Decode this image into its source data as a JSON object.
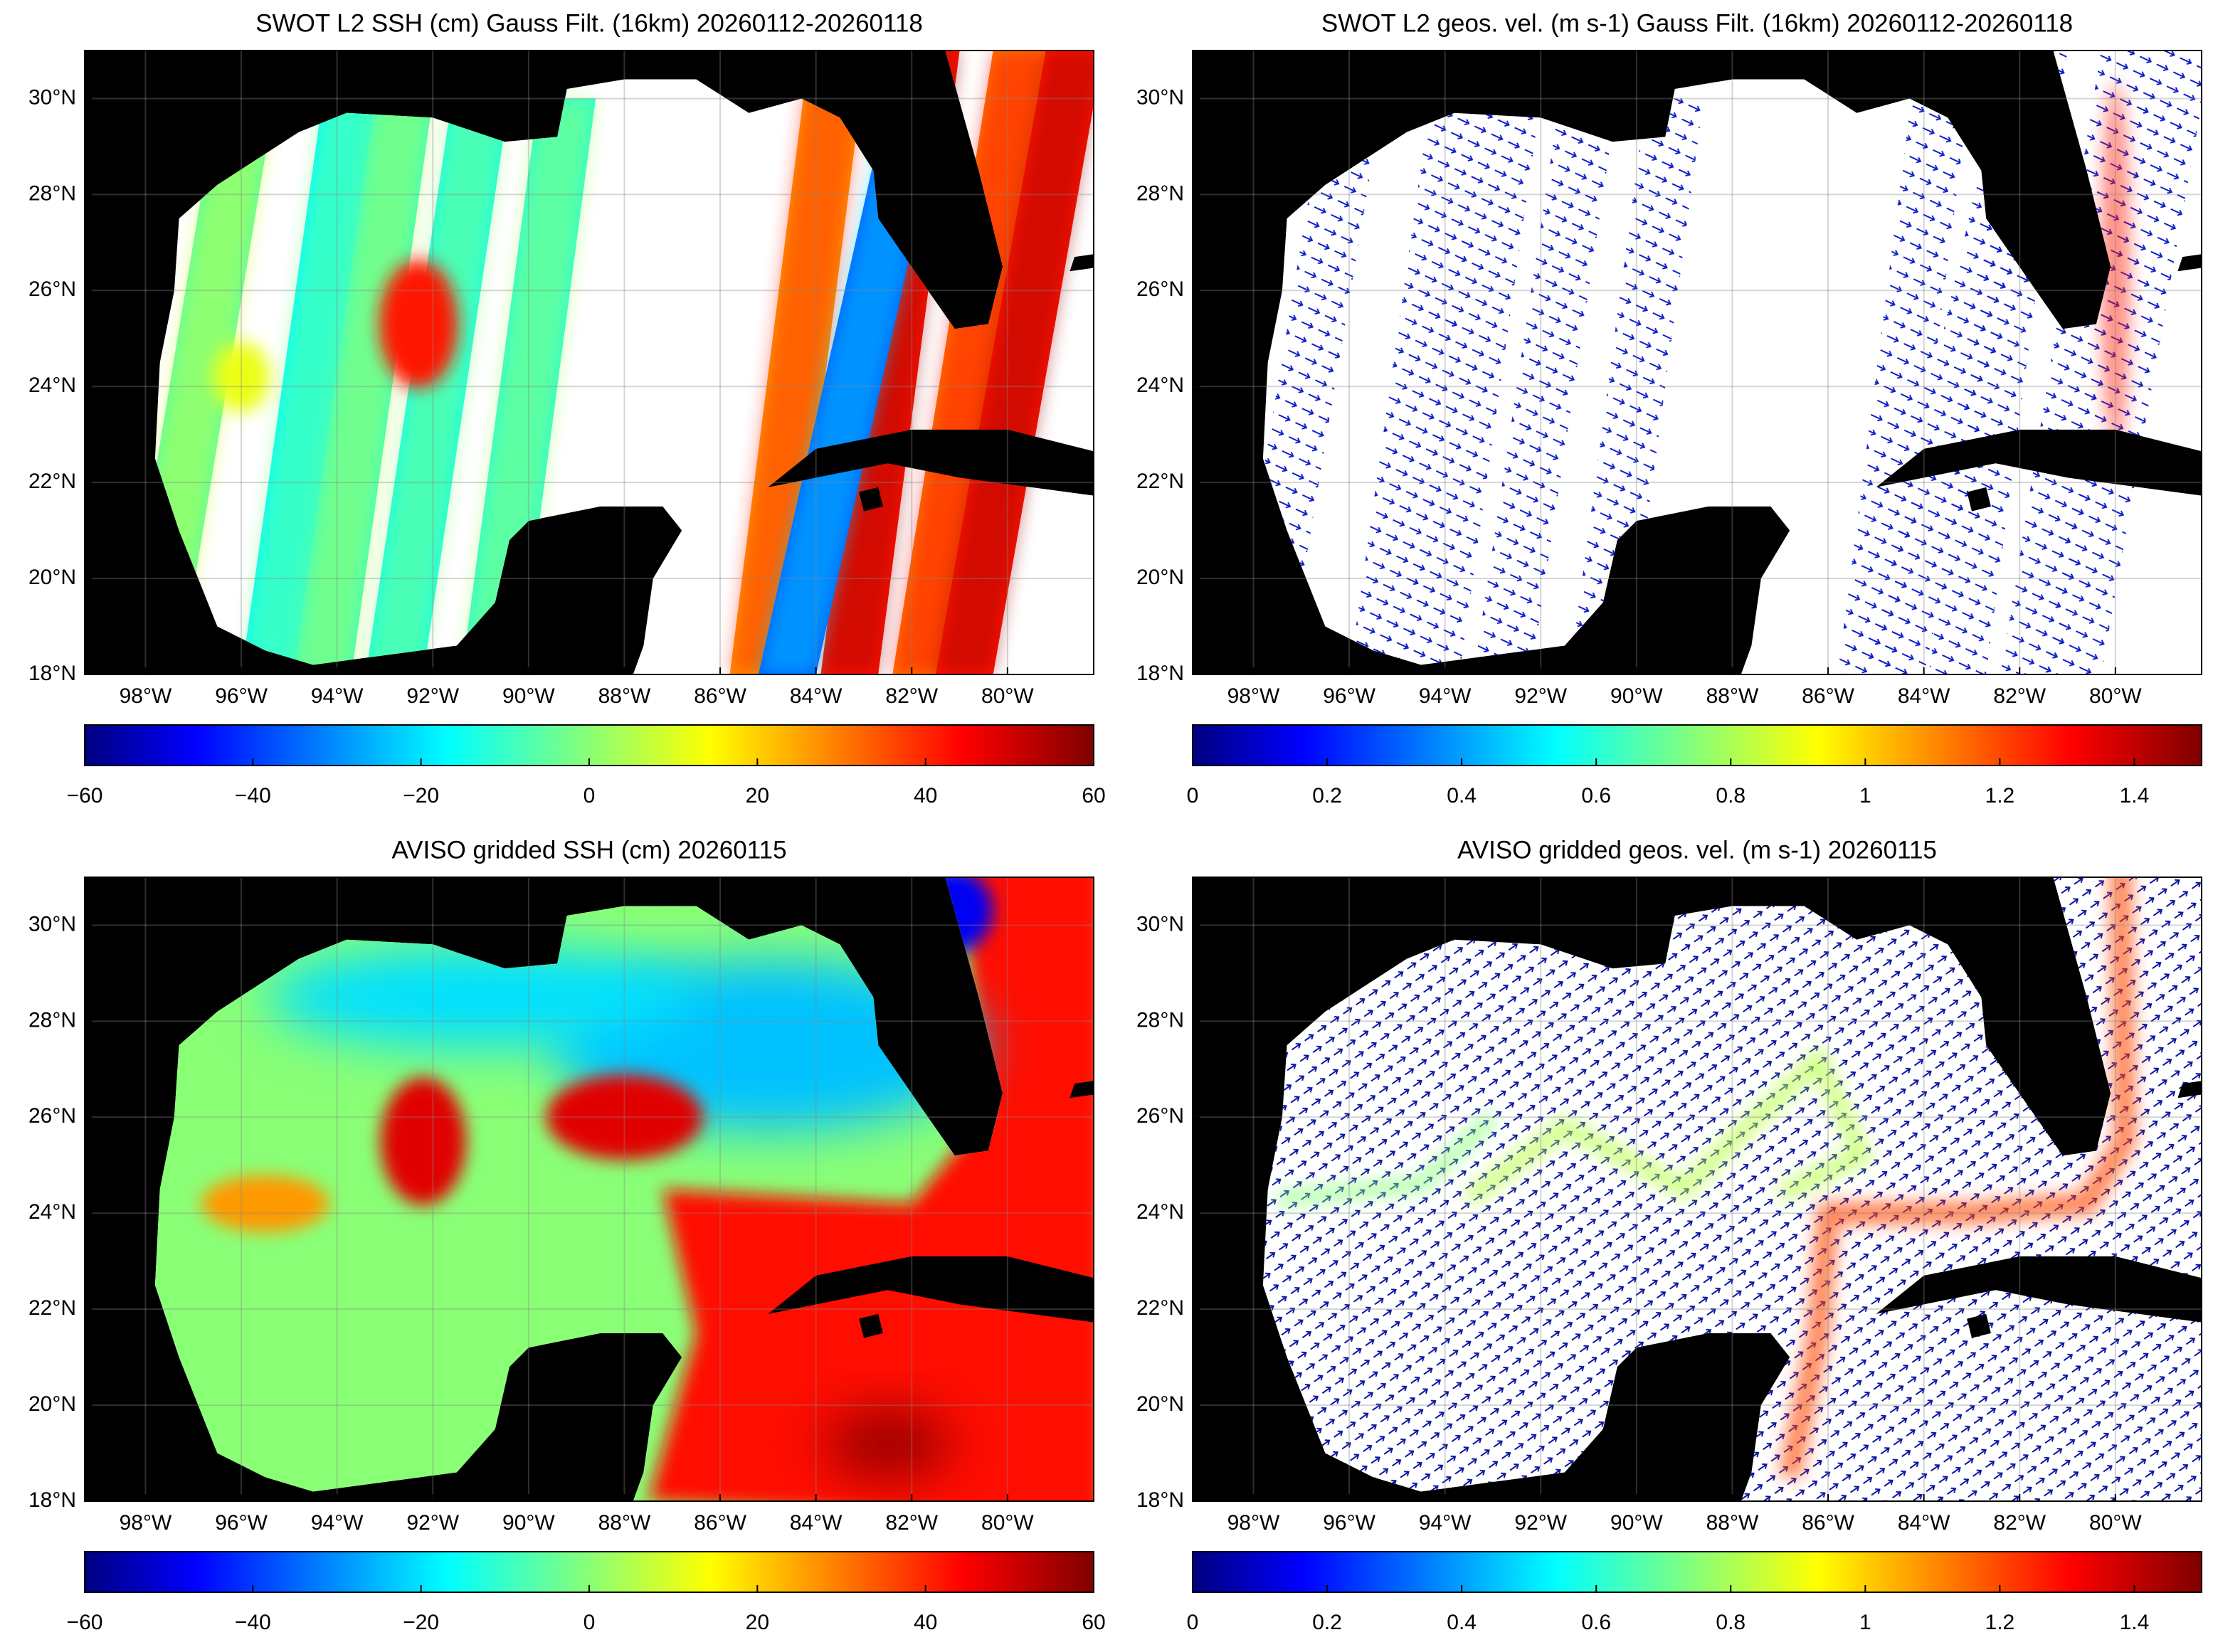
{
  "chart_data": [
    {
      "type": "map",
      "title": "SWOT L2 SSH (cm) Gauss Filt. (16km) 20260112-20260118",
      "style": "swath-ssh",
      "xlim": [
        -99.27,
        -78.2
      ],
      "ylim": [
        18,
        31.0
      ],
      "xticks": [
        {
          "value": -98,
          "label": "98°W"
        },
        {
          "value": -96,
          "label": "96°W"
        },
        {
          "value": -94,
          "label": "94°W"
        },
        {
          "value": -92,
          "label": "92°W"
        },
        {
          "value": -90,
          "label": "90°W"
        },
        {
          "value": -88,
          "label": "88°W"
        },
        {
          "value": -86,
          "label": "86°W"
        },
        {
          "value": -84,
          "label": "84°W"
        },
        {
          "value": -82,
          "label": "82°W"
        },
        {
          "value": -80,
          "label": "80°W"
        }
      ],
      "yticks": [
        {
          "value": 18,
          "label": "18°N"
        },
        {
          "value": 20,
          "label": "20°N"
        },
        {
          "value": 22,
          "label": "22°N"
        },
        {
          "value": 24,
          "label": "24°N"
        },
        {
          "value": 26,
          "label": "26°N"
        },
        {
          "value": 28,
          "label": "28°N"
        },
        {
          "value": 30,
          "label": "30°N"
        }
      ],
      "grid": true,
      "colormap": "jet",
      "clim": [
        -60,
        60
      ],
      "cticks": [
        {
          "value": -60,
          "label": "−60"
        },
        {
          "value": -40,
          "label": "−40"
        },
        {
          "value": -20,
          "label": "−20"
        },
        0,
        20,
        40,
        60
      ]
    },
    {
      "type": "map",
      "title": "SWOT L2 geos. vel. (m s-1) Gauss Filt. (16km) 20260112-20260118",
      "style": "swath-vel",
      "xlim": [
        -99.27,
        -78.2
      ],
      "ylim": [
        18,
        31.0
      ],
      "xticks": [
        {
          "value": -98,
          "label": "98°W"
        },
        {
          "value": -96,
          "label": "96°W"
        },
        {
          "value": -94,
          "label": "94°W"
        },
        {
          "value": -92,
          "label": "92°W"
        },
        {
          "value": -90,
          "label": "90°W"
        },
        {
          "value": -88,
          "label": "88°W"
        },
        {
          "value": -86,
          "label": "86°W"
        },
        {
          "value": -84,
          "label": "84°W"
        },
        {
          "value": -82,
          "label": "82°W"
        },
        {
          "value": -80,
          "label": "80°W"
        }
      ],
      "yticks": [
        {
          "value": 18,
          "label": "18°N"
        },
        {
          "value": 20,
          "label": "20°N"
        },
        {
          "value": 22,
          "label": "22°N"
        },
        {
          "value": 24,
          "label": "24°N"
        },
        {
          "value": 26,
          "label": "26°N"
        },
        {
          "value": 28,
          "label": "28°N"
        },
        {
          "value": 30,
          "label": "30°N"
        }
      ],
      "grid": true,
      "colormap": "jet",
      "clim": [
        0,
        1.5
      ],
      "cticks": [
        0,
        0.2,
        0.4,
        0.6,
        0.8,
        1,
        1.2,
        1.4
      ]
    },
    {
      "type": "map",
      "title": "AVISO gridded SSH (cm) 20260115",
      "style": "grid-ssh",
      "xlim": [
        -99.27,
        -78.2
      ],
      "ylim": [
        18,
        31.0
      ],
      "xticks": [
        {
          "value": -98,
          "label": "98°W"
        },
        {
          "value": -96,
          "label": "96°W"
        },
        {
          "value": -94,
          "label": "94°W"
        },
        {
          "value": -92,
          "label": "92°W"
        },
        {
          "value": -90,
          "label": "90°W"
        },
        {
          "value": -88,
          "label": "88°W"
        },
        {
          "value": -86,
          "label": "86°W"
        },
        {
          "value": -84,
          "label": "84°W"
        },
        {
          "value": -82,
          "label": "82°W"
        },
        {
          "value": -80,
          "label": "80°W"
        }
      ],
      "yticks": [
        {
          "value": 18,
          "label": "18°N"
        },
        {
          "value": 20,
          "label": "20°N"
        },
        {
          "value": 22,
          "label": "22°N"
        },
        {
          "value": 24,
          "label": "24°N"
        },
        {
          "value": 26,
          "label": "26°N"
        },
        {
          "value": 28,
          "label": "28°N"
        },
        {
          "value": 30,
          "label": "30°N"
        }
      ],
      "grid": true,
      "colormap": "jet",
      "clim": [
        -60,
        60
      ],
      "cticks": [
        {
          "value": -60,
          "label": "−60"
        },
        {
          "value": -40,
          "label": "−40"
        },
        {
          "value": -20,
          "label": "−20"
        },
        0,
        20,
        40,
        60
      ]
    },
    {
      "type": "map",
      "title": "AVISO gridded geos. vel. (m s-1)  20260115",
      "style": "grid-vel",
      "xlim": [
        -99.27,
        -78.2
      ],
      "ylim": [
        18,
        31.0
      ],
      "xticks": [
        {
          "value": -98,
          "label": "98°W"
        },
        {
          "value": -96,
          "label": "96°W"
        },
        {
          "value": -94,
          "label": "94°W"
        },
        {
          "value": -92,
          "label": "92°W"
        },
        {
          "value": -90,
          "label": "90°W"
        },
        {
          "value": -88,
          "label": "88°W"
        },
        {
          "value": -86,
          "label": "86°W"
        },
        {
          "value": -84,
          "label": "84°W"
        },
        {
          "value": -82,
          "label": "82°W"
        },
        {
          "value": -80,
          "label": "80°W"
        }
      ],
      "yticks": [
        {
          "value": 18,
          "label": "18°N"
        },
        {
          "value": 20,
          "label": "20°N"
        },
        {
          "value": 22,
          "label": "22°N"
        },
        {
          "value": 24,
          "label": "24°N"
        },
        {
          "value": 26,
          "label": "26°N"
        },
        {
          "value": 28,
          "label": "28°N"
        },
        {
          "value": 30,
          "label": "30°N"
        }
      ],
      "grid": true,
      "colormap": "jet",
      "clim": [
        0,
        1.5
      ],
      "cticks": [
        0,
        0.2,
        0.4,
        0.6,
        0.8,
        1,
        1.2,
        1.4
      ]
    }
  ]
}
